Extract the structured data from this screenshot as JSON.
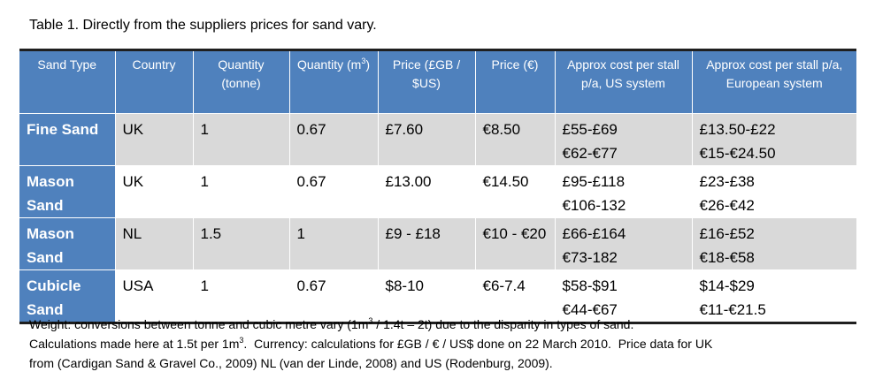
{
  "caption": "Table 1. Directly from the suppliers prices for sand vary.",
  "table": {
    "columns": [
      "Sand Type",
      "Country",
      "Quantity (tonne)",
      [
        "Quantity (m",
        "3",
        ")"
      ],
      "Price (£GB / $US)",
      "Price (€)",
      "Approx cost per stall p/a, US system",
      "Approx cost per stall p/a, European system"
    ],
    "rows": [
      [
        "Fine Sand",
        "UK",
        "1",
        "0.67",
        "£7.60",
        "€8.50",
        [
          "£55-£69",
          "€62-€77"
        ],
        [
          "£13.50-£22",
          "€15-€24.50"
        ]
      ],
      [
        "Mason Sand",
        "UK",
        "1",
        "0.67",
        "£13.00",
        "€14.50",
        [
          "£95-£118",
          "€106-132"
        ],
        [
          "£23-£38",
          "€26-€42"
        ]
      ],
      [
        "Mason Sand",
        "NL",
        "1.5",
        "1",
        "£9 - £18",
        "€10 - €20",
        [
          "£66-£164",
          "€73-182"
        ],
        [
          "£16-£52",
          "€18-€58"
        ]
      ],
      [
        "Cubicle Sand",
        "USA",
        "1",
        "0.67",
        "$8-10",
        "€6-7.4",
        [
          "$58-$91",
          "€44-€67"
        ],
        [
          "$14-$29",
          "€11-€21.5"
        ]
      ]
    ]
  },
  "note": [
    "Weight: conversions between tonne and cubic metre vary (1m",
    "3",
    " / 1.4t – 2t) due to the disparity in types of sand.",
    "Calculations made here at 1.5t per 1m",
    "3",
    ".  Currency: calculations for £GB / € / US$ done on 22 March 2010.  Price data for UK",
    "from (Cardigan Sand & Gravel Co., 2009) NL (van der Linde, 2008) and US (Rodenburg, 2009)."
  ]
}
